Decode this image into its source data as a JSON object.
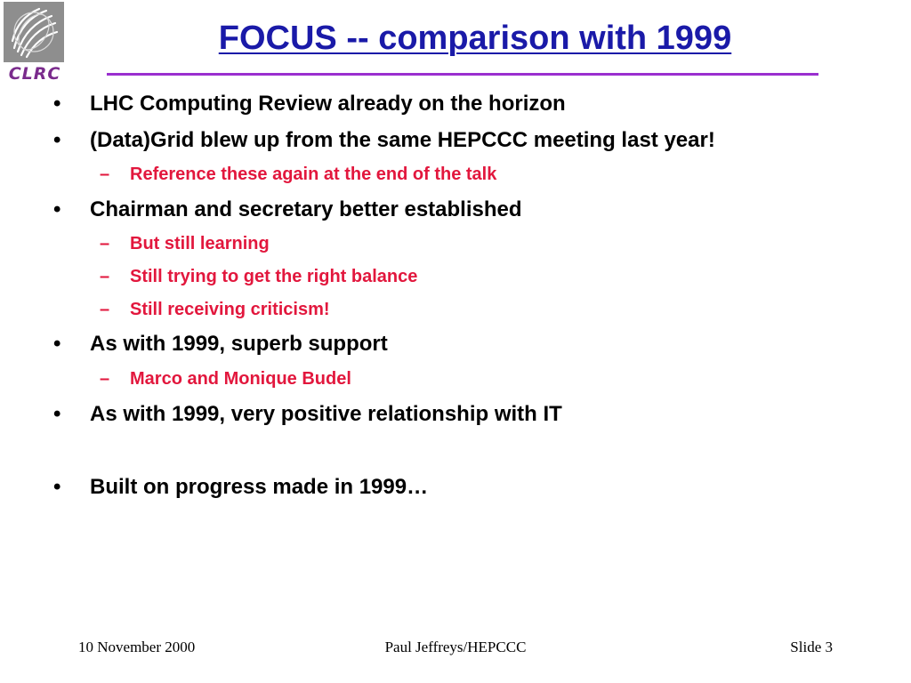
{
  "logo": {
    "wordmark": "CLRC",
    "icon": "clrc-logo-icon"
  },
  "slide": {
    "title": "FOCUS -- comparison with 1999"
  },
  "bullets": {
    "b1": "LHC Computing Review already on the horizon",
    "b2": "(Data)Grid blew up from the same HEPCCC meeting last year!",
    "b2_s1": "Reference these again at the end of the talk",
    "b3": "Chairman and secretary better established",
    "b3_s1": "But still learning",
    "b3_s2": "Still trying to get the right balance",
    "b3_s3": "Still receiving criticism!",
    "b4": "As with 1999, superb support",
    "b4_s1": "Marco and Monique Budel",
    "b5": "As with 1999, very positive relationship with IT",
    "b6": "Built on progress made in 1999…"
  },
  "markers": {
    "bullet": "•",
    "dash": "–"
  },
  "footer": {
    "date": "10 November 2000",
    "author": "Paul Jeffreys/HEPCCC",
    "slide": "Slide 3"
  },
  "colors": {
    "title": "#1a1aa8",
    "rule": "#9a2fcf",
    "sub_bullet": "#e2173d",
    "logo_wordmark": "#7a2b8c",
    "logo_bg": "#8e8e8e"
  }
}
